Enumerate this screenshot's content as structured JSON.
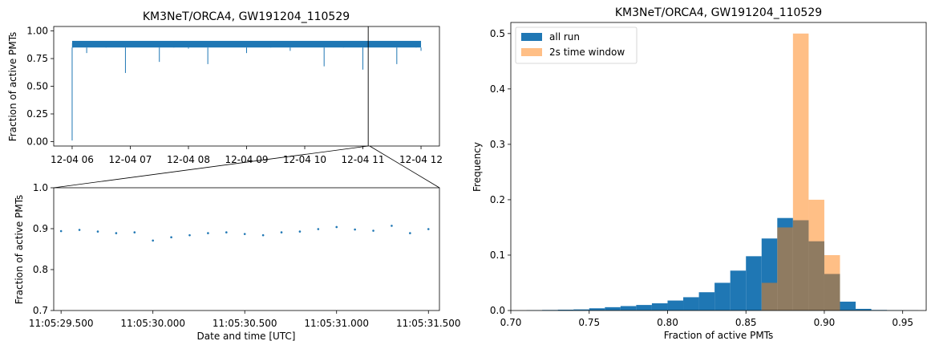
{
  "colors": {
    "all_run": "#1f77b4",
    "window": "#ff7f0e",
    "axes": "#000000"
  },
  "chart_data": [
    {
      "id": "timeseries_full",
      "type": "line",
      "title": "KM3NeT/ORCA4, GW191204_110529",
      "xlabel": "",
      "ylabel": "Fraction of active PMTs",
      "x_type": "datetime",
      "xlim": [
        "2019-12-04 05:41",
        "2019-12-04 12:19"
      ],
      "ylim": [
        -0.04,
        1.04
      ],
      "xticks": [
        "12-04 06",
        "12-04 07",
        "12-04 08",
        "12-04 09",
        "12-04 10",
        "12-04 11",
        "12-04 12"
      ],
      "yticks": [
        "0.00",
        "0.25",
        "0.50",
        "0.75",
        "1.00"
      ],
      "series": [
        {
          "baseline_band": [
            0.85,
            0.91
          ],
          "x": [
            "2019-12-04 06:00",
            "2019-12-04 06:00:20",
            "2019-12-04 06:01",
            "2019-12-04 06:15",
            "2019-12-04 06:35",
            "2019-12-04 06:55",
            "2019-12-04 07:10",
            "2019-12-04 07:30",
            "2019-12-04 07:45",
            "2019-12-04 08:00",
            "2019-12-04 08:20",
            "2019-12-04 08:40",
            "2019-12-04 09:00",
            "2019-12-04 09:25",
            "2019-12-04 09:45",
            "2019-12-04 10:00",
            "2019-12-04 10:20",
            "2019-12-04 10:40",
            "2019-12-04 11:00",
            "2019-12-04 11:15",
            "2019-12-04 11:35",
            "2019-12-04 11:55",
            "2019-12-04 12:00"
          ],
          "values": [
            0.01,
            0.89,
            0.88,
            0.8,
            0.86,
            0.62,
            0.85,
            0.72,
            0.86,
            0.84,
            0.7,
            0.85,
            0.8,
            0.86,
            0.82,
            0.85,
            0.68,
            0.86,
            0.65,
            0.85,
            0.7,
            0.86,
            0.82
          ]
        }
      ],
      "annotations": [
        {
          "type": "vline",
          "x": "2019-12-04 11:05:30"
        }
      ]
    },
    {
      "id": "timeseries_zoom",
      "type": "scatter",
      "xlabel": "Date and time [UTC]",
      "ylabel": "Fraction of active PMTs",
      "xlim": [
        "11:05:29.460",
        "11:05:31.560"
      ],
      "ylim": [
        0.7,
        1.0
      ],
      "xticks": [
        "11:05:29.500",
        "11:05:30.000",
        "11:05:30.500",
        "11:05:31.000",
        "11:05:31.500"
      ],
      "yticks": [
        "0.7",
        "0.8",
        "0.9",
        "1.0"
      ],
      "x": [
        "11:05:29.500",
        "11:05:29.600",
        "11:05:29.700",
        "11:05:29.800",
        "11:05:29.900",
        "11:05:30.000",
        "11:05:30.100",
        "11:05:30.200",
        "11:05:30.300",
        "11:05:30.400",
        "11:05:30.500",
        "11:05:30.600",
        "11:05:30.700",
        "11:05:30.800",
        "11:05:30.900",
        "11:05:31.000",
        "11:05:31.100",
        "11:05:31.200",
        "11:05:31.300",
        "11:05:31.400",
        "11:05:31.500"
      ],
      "values": [
        0.894,
        0.897,
        0.893,
        0.889,
        0.891,
        0.871,
        0.879,
        0.884,
        0.889,
        0.891,
        0.887,
        0.884,
        0.891,
        0.893,
        0.899,
        0.904,
        0.898,
        0.895,
        0.907,
        0.889,
        0.899
      ]
    },
    {
      "id": "histogram",
      "type": "bar",
      "title": "KM3NeT/ORCA4, GW191204_110529",
      "xlabel": "Fraction of active PMTs",
      "ylabel": "Frequency",
      "xlim": [
        0.7,
        0.965
      ],
      "ylim": [
        0,
        0.52
      ],
      "xticks": [
        "0.70",
        "0.75",
        "0.80",
        "0.85",
        "0.90",
        "0.95"
      ],
      "yticks": [
        "0.0",
        "0.1",
        "0.2",
        "0.3",
        "0.4",
        "0.5"
      ],
      "legend_position": "top-left",
      "series": [
        {
          "name": "all run",
          "bin_edges": [
            0.71,
            0.72,
            0.73,
            0.74,
            0.75,
            0.76,
            0.77,
            0.78,
            0.79,
            0.8,
            0.81,
            0.82,
            0.83,
            0.84,
            0.85,
            0.86,
            0.87,
            0.88,
            0.89,
            0.9,
            0.91,
            0.92,
            0.93,
            0.94,
            0.95,
            0.96
          ],
          "values": [
            0.0005,
            0.001,
            0.0015,
            0.002,
            0.004,
            0.006,
            0.008,
            0.01,
            0.013,
            0.018,
            0.024,
            0.033,
            0.05,
            0.072,
            0.098,
            0.13,
            0.167,
            0.163,
            0.125,
            0.066,
            0.016,
            0.003,
            0.001,
            0.0005,
            0.0003
          ]
        },
        {
          "name": "2s time window",
          "bin_edges": [
            0.86,
            0.87,
            0.88,
            0.89,
            0.9,
            0.91
          ],
          "values": [
            0.05,
            0.15,
            0.5,
            0.2,
            0.1
          ]
        }
      ]
    }
  ]
}
